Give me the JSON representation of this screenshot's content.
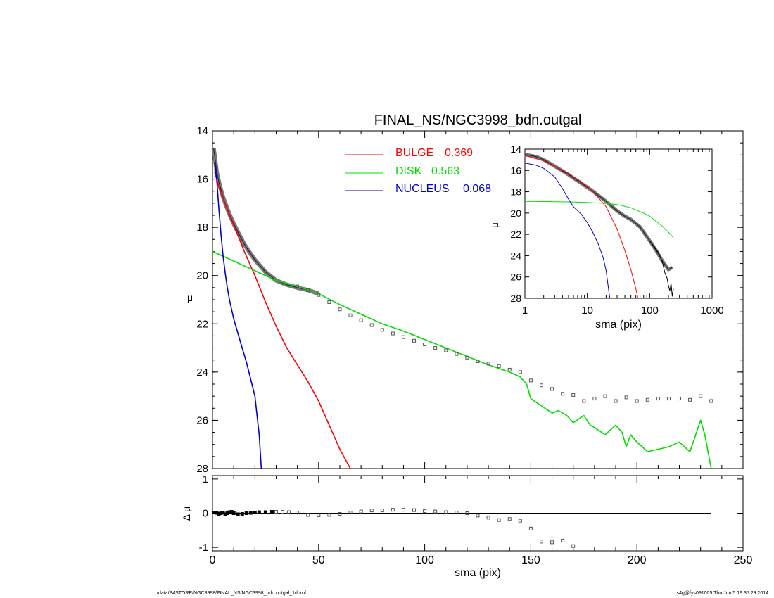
{
  "chart_data": [
    {
      "name": "main",
      "type": "line",
      "title": "FINAL_NS/NGC3998_bdn.outgal",
      "xlabel": "",
      "ylabel": "μ",
      "xlim": [
        0,
        250
      ],
      "ylim": [
        28,
        14
      ],
      "y_inverted": true,
      "yticks": [
        "14",
        "16",
        "18",
        "20",
        "22",
        "24",
        "26",
        "28"
      ],
      "legend_position": "top-center",
      "legend": [
        {
          "label": "BULGE",
          "value": "0.369",
          "color": "#ff0000"
        },
        {
          "label": "DISK",
          "value": "0.563",
          "color": "#00dd00"
        },
        {
          "label": "NUCLEUS",
          "value": "0.068",
          "color": "#0000cc"
        }
      ],
      "series": [
        {
          "role": "model",
          "color": "#777777",
          "x": [
            0.5,
            1,
            2,
            3,
            4,
            5,
            6,
            8,
            10,
            12,
            15,
            18,
            20,
            25,
            30,
            35,
            40,
            45,
            50
          ],
          "y": [
            14.7,
            15,
            15.7,
            16.1,
            16.45,
            16.75,
            17.0,
            17.45,
            17.85,
            18.2,
            18.7,
            19.1,
            19.35,
            19.85,
            20.2,
            20.38,
            20.5,
            20.6,
            20.75
          ]
        },
        {
          "role": "bulge",
          "color": "#ff0000",
          "x": [
            1,
            3,
            5,
            8,
            10,
            15,
            20,
            25,
            30,
            35,
            40,
            45,
            50,
            55,
            60,
            65
          ],
          "y": [
            15.7,
            16.3,
            16.8,
            17.5,
            17.9,
            19.0,
            20.0,
            21.1,
            22.1,
            23.0,
            23.7,
            24.4,
            25.2,
            26.2,
            27.2,
            28.0
          ]
        },
        {
          "role": "disk",
          "color": "#00dd00",
          "x": [
            0,
            10,
            20,
            30,
            40,
            50,
            60,
            70,
            80,
            90,
            100,
            110,
            120,
            130,
            140,
            145,
            148,
            150,
            155,
            160,
            163,
            167,
            170,
            175,
            178,
            180,
            185,
            190,
            193,
            195,
            197,
            200,
            205,
            210,
            215,
            220,
            225,
            230,
            232,
            235
          ],
          "y": [
            19.0,
            19.4,
            19.8,
            20.2,
            20.45,
            20.75,
            21.2,
            21.6,
            22.0,
            22.3,
            22.65,
            23.0,
            23.35,
            23.7,
            24.0,
            24.2,
            24.5,
            25.1,
            25.4,
            25.7,
            25.6,
            25.8,
            26.1,
            25.8,
            26.2,
            26.3,
            26.6,
            26.2,
            26.5,
            27.1,
            26.6,
            26.9,
            27.3,
            27.2,
            27.1,
            26.9,
            27.3,
            26.0,
            26.6,
            28.0
          ]
        },
        {
          "role": "nucleus",
          "color": "#0000cc",
          "x": [
            1,
            2,
            3,
            4,
            5,
            6,
            7,
            8,
            10,
            12,
            14,
            16,
            18,
            20,
            21,
            22,
            23
          ],
          "y": [
            15.3,
            16.0,
            17.2,
            18.3,
            19.2,
            19.9,
            20.5,
            21.0,
            21.8,
            22.4,
            23.0,
            23.6,
            24.3,
            25.0,
            25.8,
            26.6,
            28.0
          ]
        },
        {
          "role": "data-points",
          "marker": "square",
          "color": "#555555",
          "x": [
            40,
            45,
            50,
            55,
            60,
            65,
            70,
            75,
            80,
            85,
            90,
            95,
            100,
            105,
            110,
            115,
            120,
            125,
            130,
            135,
            140,
            145,
            150,
            155,
            160,
            165,
            170,
            175,
            180,
            185,
            190,
            195,
            200,
            205,
            210,
            215,
            220,
            225,
            230,
            235
          ],
          "y": [
            20.45,
            20.6,
            20.8,
            21.1,
            21.4,
            21.65,
            21.85,
            22.05,
            22.25,
            22.4,
            22.55,
            22.7,
            22.85,
            23.0,
            23.1,
            23.25,
            23.4,
            23.55,
            23.65,
            23.75,
            23.9,
            24.0,
            24.35,
            24.55,
            24.7,
            24.9,
            24.95,
            25.2,
            25.1,
            25.0,
            25.2,
            25.05,
            25.2,
            25.15,
            25.1,
            25.1,
            25.1,
            25.15,
            25.0,
            25.2
          ]
        }
      ]
    },
    {
      "name": "residual",
      "type": "scatter",
      "xlabel": "sma (pix)",
      "ylabel": "Δ μ",
      "xlim": [
        0,
        250
      ],
      "ylim": [
        -1.1,
        1.1
      ],
      "xticks": [
        "0",
        "50",
        "100",
        "150",
        "200",
        "250"
      ],
      "yticks": [
        "1",
        "0",
        "-1"
      ],
      "zero_line": {
        "x": [
          0,
          235
        ],
        "y": 0
      },
      "series": [
        {
          "role": "residual",
          "marker": "square",
          "color": "#555555",
          "x": [
            1,
            2,
            3,
            4,
            5,
            6,
            7,
            8,
            9,
            10,
            12,
            14,
            16,
            18,
            20,
            22,
            25,
            28,
            30,
            33,
            36,
            40,
            45,
            50,
            55,
            60,
            65,
            70,
            75,
            80,
            85,
            90,
            95,
            100,
            105,
            110,
            115,
            120,
            125,
            130,
            135,
            140,
            145,
            150,
            155,
            160,
            165,
            170
          ],
          "y": [
            0.02,
            0.01,
            -0.02,
            0,
            0.02,
            -0.03,
            0.0,
            0.03,
            0.04,
            0.0,
            -0.03,
            -0.02,
            0.0,
            0.01,
            0.02,
            0.03,
            0.03,
            0.04,
            0.04,
            0.04,
            0.03,
            0.02,
            -0.05,
            -0.06,
            -0.05,
            -0.02,
            0.02,
            0.05,
            0.08,
            0.08,
            0.1,
            0.1,
            0.09,
            0.06,
            0.05,
            0.03,
            0.02,
            0.0,
            -0.07,
            -0.13,
            -0.2,
            -0.17,
            -0.22,
            -0.45,
            -0.83,
            -0.85,
            -0.8,
            -0.96
          ]
        }
      ]
    },
    {
      "name": "inset",
      "type": "line",
      "xlabel": "sma (pix)",
      "ylabel": "μ",
      "xscale": "log",
      "xlim": [
        1,
        1000
      ],
      "ylim": [
        28,
        14
      ],
      "y_inverted": true,
      "xticks": [
        "1",
        "10",
        "100",
        "1000"
      ],
      "yticks": [
        "14",
        "16",
        "18",
        "20",
        "22",
        "24",
        "26",
        "28"
      ],
      "series": [
        {
          "role": "data",
          "color": "#777777",
          "x": [
            1,
            1.5,
            2,
            3,
            5,
            8,
            12,
            20,
            30,
            40,
            50,
            70,
            100,
            130,
            160,
            200,
            230
          ],
          "y": [
            14.5,
            14.7,
            15.0,
            15.6,
            16.4,
            17.2,
            17.9,
            18.9,
            19.8,
            20.3,
            20.6,
            21.3,
            22.6,
            23.6,
            24.5,
            25.3,
            25.1
          ]
        },
        {
          "role": "observed",
          "color": "#000000",
          "x": [
            100,
            120,
            140,
            160,
            175,
            190,
            200,
            210,
            220,
            230,
            240
          ],
          "y": [
            22.6,
            23.2,
            23.8,
            24.6,
            25.6,
            26.1,
            26.8,
            27.3,
            26.6,
            27.8,
            27.1
          ]
        },
        {
          "role": "bulge",
          "color": "#ff0000",
          "x": [
            1,
            2,
            3,
            5,
            8,
            12,
            20,
            30,
            40,
            50,
            60,
            65
          ],
          "y": [
            14.6,
            15.1,
            15.6,
            16.3,
            17.1,
            17.9,
            19.4,
            21.5,
            23.5,
            25.3,
            27.1,
            28.0
          ]
        },
        {
          "role": "disk",
          "color": "#00dd00",
          "x": [
            1,
            5,
            10,
            20,
            30,
            50,
            80,
            100,
            150,
            200,
            240
          ],
          "y": [
            18.9,
            18.95,
            19.0,
            19.1,
            19.2,
            19.5,
            20.0,
            20.3,
            21.1,
            21.8,
            22.3
          ]
        },
        {
          "role": "nucleus",
          "color": "#0000cc",
          "x": [
            1,
            1.5,
            2,
            3,
            4,
            5,
            6,
            8,
            10,
            12,
            15,
            18,
            20,
            22,
            23
          ],
          "y": [
            15.3,
            15.5,
            15.8,
            16.6,
            17.7,
            18.7,
            19.4,
            20.1,
            20.9,
            21.7,
            22.9,
            24.2,
            25.4,
            27.2,
            28.0
          ]
        }
      ]
    }
  ],
  "footer": {
    "left": "/data/P4STORE/NGC3998/FINAL_NS/NGC3998_bdn.outgal_1dprof",
    "right": "s4g@fys091005 Thu Jun  5 19:35:29 2014"
  }
}
